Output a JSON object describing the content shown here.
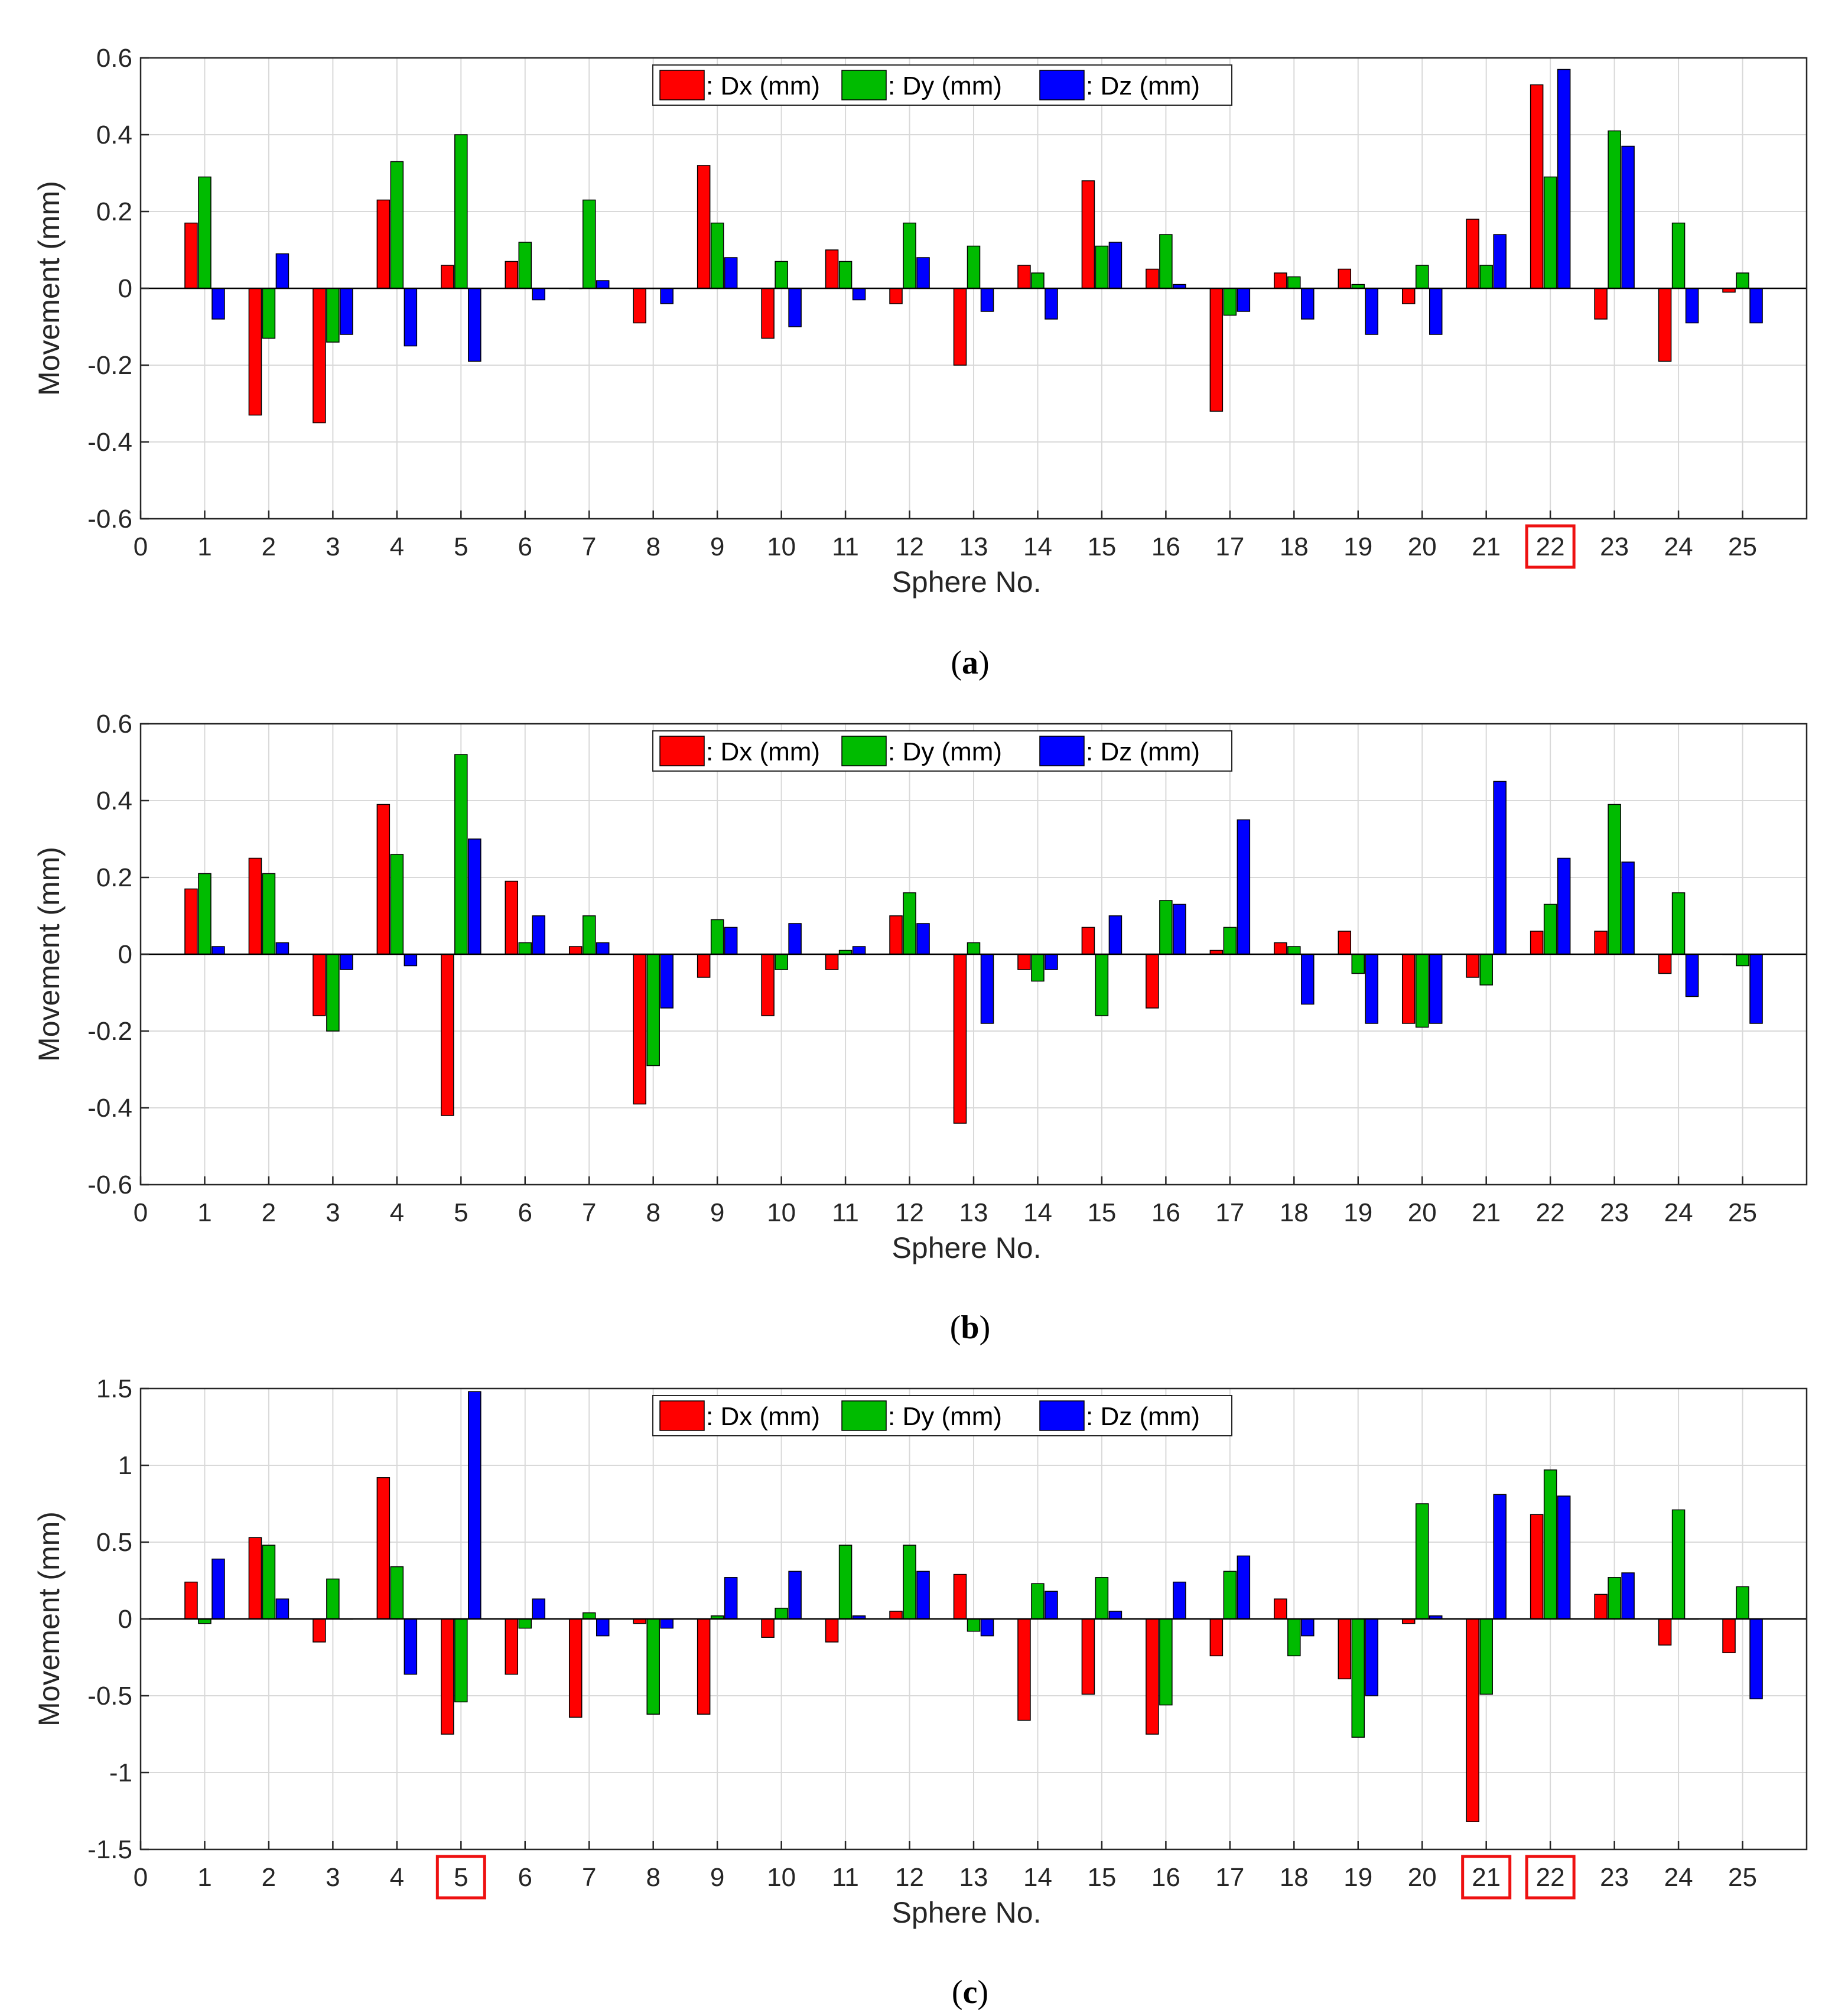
{
  "colors": {
    "dx": "#ff0000",
    "dy": "#00bb00",
    "dz": "#0000ff",
    "highlight": "#ee1111",
    "grid": "#d9d9d9",
    "axis": "#262626"
  },
  "chart_data": [
    {
      "type": "bar",
      "panel": "(a)",
      "panel_letter": "a",
      "xlabel": "Sphere No.",
      "ylabel": "Movement (mm)",
      "ylim": [
        -0.6,
        0.6
      ],
      "yticks": [
        -0.6,
        -0.4,
        -0.2,
        0,
        0.2,
        0.4,
        0.6
      ],
      "ytick_labels": [
        "-0.6",
        "-0.4",
        "-0.2",
        "0",
        "0.2",
        "0.4",
        "0.6"
      ],
      "xlim": [
        0,
        26
      ],
      "xticks": [
        0,
        1,
        2,
        3,
        4,
        5,
        6,
        7,
        8,
        9,
        10,
        11,
        12,
        13,
        14,
        15,
        16,
        17,
        18,
        19,
        20,
        21,
        22,
        23,
        24,
        25
      ],
      "categories": [
        1,
        2,
        3,
        4,
        5,
        6,
        7,
        8,
        9,
        10,
        11,
        12,
        13,
        14,
        15,
        16,
        17,
        18,
        19,
        20,
        21,
        22,
        23,
        24,
        25
      ],
      "highlighted": [
        22
      ],
      "legend": ": Dx (mm)|: Dy (mm)|: Dz (mm)",
      "series": [
        {
          "name": ": Dx (mm)",
          "key": "dx",
          "values": [
            0.17,
            -0.33,
            -0.35,
            0.23,
            0.06,
            0.07,
            0.0,
            -0.09,
            0.32,
            -0.13,
            0.1,
            -0.04,
            -0.2,
            0.06,
            0.28,
            0.05,
            -0.32,
            0.04,
            0.05,
            -0.04,
            0.18,
            0.53,
            -0.08,
            -0.19,
            -0.01
          ]
        },
        {
          "name": ": Dy (mm)",
          "key": "dy",
          "values": [
            0.29,
            -0.13,
            -0.14,
            0.33,
            0.4,
            0.12,
            0.23,
            0.0,
            0.17,
            0.07,
            0.07,
            0.17,
            0.11,
            0.04,
            0.11,
            0.14,
            -0.07,
            0.03,
            0.01,
            0.06,
            0.06,
            0.29,
            0.41,
            0.17,
            0.04
          ]
        },
        {
          "name": ": Dz (mm)",
          "key": "dz",
          "values": [
            -0.08,
            0.09,
            -0.12,
            -0.15,
            -0.19,
            -0.03,
            0.02,
            -0.04,
            0.08,
            -0.1,
            -0.03,
            0.08,
            -0.06,
            -0.08,
            0.12,
            0.01,
            -0.06,
            -0.08,
            -0.12,
            -0.12,
            0.14,
            0.57,
            0.37,
            -0.09,
            -0.09
          ]
        }
      ]
    },
    {
      "type": "bar",
      "panel": "(b)",
      "panel_letter": "b",
      "xlabel": "Sphere No.",
      "ylabel": "Movement (mm)",
      "ylim": [
        -0.6,
        0.6
      ],
      "yticks": [
        -0.6,
        -0.4,
        -0.2,
        0,
        0.2,
        0.4,
        0.6
      ],
      "ytick_labels": [
        "-0.6",
        "-0.4",
        "-0.2",
        "0",
        "0.2",
        "0.4",
        "0.6"
      ],
      "xlim": [
        0,
        26
      ],
      "xticks": [
        0,
        1,
        2,
        3,
        4,
        5,
        6,
        7,
        8,
        9,
        10,
        11,
        12,
        13,
        14,
        15,
        16,
        17,
        18,
        19,
        20,
        21,
        22,
        23,
        24,
        25
      ],
      "categories": [
        1,
        2,
        3,
        4,
        5,
        6,
        7,
        8,
        9,
        10,
        11,
        12,
        13,
        14,
        15,
        16,
        17,
        18,
        19,
        20,
        21,
        22,
        23,
        24,
        25
      ],
      "highlighted": [],
      "legend": ": Dx (mm)|: Dy (mm)|: Dz (mm)",
      "series": [
        {
          "name": ": Dx (mm)",
          "key": "dx",
          "values": [
            0.17,
            0.25,
            -0.16,
            0.39,
            -0.42,
            0.19,
            0.02,
            -0.39,
            -0.06,
            -0.16,
            -0.04,
            0.1,
            -0.44,
            -0.04,
            0.07,
            -0.14,
            0.01,
            0.03,
            0.06,
            -0.18,
            -0.06,
            0.06,
            0.06,
            -0.05,
            0.0
          ]
        },
        {
          "name": ": Dy (mm)",
          "key": "dy",
          "values": [
            0.21,
            0.21,
            -0.2,
            0.26,
            0.52,
            0.03,
            0.1,
            -0.29,
            0.09,
            -0.04,
            0.01,
            0.16,
            0.03,
            -0.07,
            -0.16,
            0.14,
            0.07,
            0.02,
            -0.05,
            -0.19,
            -0.08,
            0.13,
            0.39,
            0.16,
            -0.03
          ]
        },
        {
          "name": ": Dz (mm)",
          "key": "dz",
          "values": [
            0.02,
            0.03,
            -0.04,
            -0.03,
            0.3,
            0.1,
            0.03,
            -0.14,
            0.07,
            0.08,
            0.02,
            0.08,
            -0.18,
            -0.04,
            0.1,
            0.13,
            0.35,
            -0.13,
            -0.18,
            -0.18,
            0.45,
            0.25,
            0.24,
            -0.11,
            -0.18
          ]
        }
      ]
    },
    {
      "type": "bar",
      "panel": "(c)",
      "panel_letter": "c",
      "xlabel": "Sphere No.",
      "ylabel": "Movement (mm)",
      "ylim": [
        -1.5,
        1.5
      ],
      "yticks": [
        -1.5,
        -1,
        -0.5,
        0,
        0.5,
        1,
        1.5
      ],
      "ytick_labels": [
        "-1.5",
        "-1",
        "-0.5",
        "0",
        "0.5",
        "1",
        "1.5"
      ],
      "xlim": [
        0,
        26
      ],
      "xticks": [
        0,
        1,
        2,
        3,
        4,
        5,
        6,
        7,
        8,
        9,
        10,
        11,
        12,
        13,
        14,
        15,
        16,
        17,
        18,
        19,
        20,
        21,
        22,
        23,
        24,
        25
      ],
      "categories": [
        1,
        2,
        3,
        4,
        5,
        6,
        7,
        8,
        9,
        10,
        11,
        12,
        13,
        14,
        15,
        16,
        17,
        18,
        19,
        20,
        21,
        22,
        23,
        24,
        25
      ],
      "highlighted": [
        5,
        21,
        22
      ],
      "legend": ": Dx (mm)|: Dy (mm)|: Dz (mm)",
      "series": [
        {
          "name": ": Dx (mm)",
          "key": "dx",
          "values": [
            0.24,
            0.53,
            -0.15,
            0.92,
            -0.75,
            -0.36,
            -0.64,
            -0.03,
            -0.62,
            -0.12,
            -0.15,
            0.05,
            0.29,
            -0.66,
            -0.49,
            -0.75,
            -0.24,
            0.13,
            -0.39,
            -0.03,
            -1.32,
            0.68,
            0.16,
            -0.17,
            -0.22
          ]
        },
        {
          "name": ": Dy (mm)",
          "key": "dy",
          "values": [
            -0.03,
            0.48,
            0.26,
            0.34,
            -0.54,
            -0.06,
            0.04,
            -0.62,
            0.02,
            0.07,
            0.48,
            0.48,
            -0.08,
            0.23,
            0.27,
            -0.56,
            0.31,
            -0.24,
            -0.77,
            0.75,
            -0.49,
            0.97,
            0.27,
            0.71,
            0.21
          ]
        },
        {
          "name": ": Dz (mm)",
          "key": "dz",
          "values": [
            0.39,
            0.13,
            0.0,
            -0.36,
            1.48,
            0.13,
            -0.11,
            -0.06,
            0.27,
            0.31,
            0.02,
            0.31,
            -0.11,
            0.18,
            0.05,
            0.24,
            0.41,
            -0.11,
            -0.5,
            0.02,
            0.81,
            0.8,
            0.3,
            0.0,
            -0.52
          ]
        }
      ]
    }
  ]
}
